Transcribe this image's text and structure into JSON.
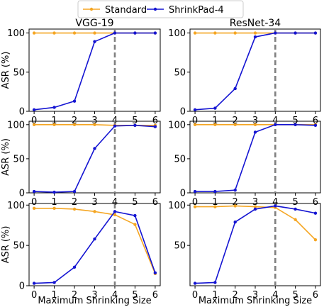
{
  "legend": {
    "placement": "top-center",
    "items": [
      {
        "label": "Standard",
        "color": "#f5a623"
      },
      {
        "label": "ShrinkPad-4",
        "color": "#1414d2"
      }
    ]
  },
  "chart_data": [
    {
      "type": "line",
      "title": "VGG-19",
      "xlabel": "",
      "ylabel": "ASR (%)",
      "x": [
        0,
        1,
        2,
        3,
        4,
        5,
        6
      ],
      "xlim": [
        -0.25,
        6.25
      ],
      "ylim": [
        0,
        105
      ],
      "yticks": [
        0,
        50,
        100
      ],
      "vline": 4,
      "grid": false,
      "series": [
        {
          "name": "Standard",
          "color": "#f5a623",
          "values": [
            100,
            100,
            100,
            100,
            100,
            100,
            100
          ]
        },
        {
          "name": "ShrinkPad-4",
          "color": "#1414d2",
          "values": [
            2,
            5,
            13,
            89,
            100,
            100,
            100
          ]
        }
      ]
    },
    {
      "type": "line",
      "title": "ResNet-34",
      "xlabel": "",
      "ylabel": "",
      "x": [
        0,
        1,
        2,
        3,
        4,
        5,
        6
      ],
      "xlim": [
        -0.25,
        6.25
      ],
      "ylim": [
        0,
        105
      ],
      "yticks": [
        0,
        50,
        100
      ],
      "vline": 4,
      "grid": false,
      "series": [
        {
          "name": "Standard",
          "color": "#f5a623",
          "values": [
            100,
            100,
            100,
            100,
            100,
            100,
            100
          ]
        },
        {
          "name": "ShrinkPad-4",
          "color": "#1414d2",
          "values": [
            2,
            4,
            29,
            95,
            100,
            100,
            100
          ]
        }
      ]
    },
    {
      "type": "line",
      "title": "",
      "xlabel": "",
      "ylabel": "ASR (%)",
      "x": [
        0,
        1,
        2,
        3,
        4,
        5,
        6
      ],
      "xlim": [
        -0.25,
        6.25
      ],
      "ylim": [
        0,
        105
      ],
      "yticks": [
        0,
        50,
        100
      ],
      "vline": 4,
      "grid": false,
      "series": [
        {
          "name": "Standard",
          "color": "#f5a623",
          "values": [
            100,
            100,
            100,
            100,
            99,
            99,
            99
          ]
        },
        {
          "name": "ShrinkPad-4",
          "color": "#1414d2",
          "values": [
            2,
            1,
            2,
            65,
            98,
            99,
            97
          ]
        }
      ]
    },
    {
      "type": "line",
      "title": "",
      "xlabel": "",
      "ylabel": "",
      "x": [
        0,
        1,
        2,
        3,
        4,
        5,
        6
      ],
      "xlim": [
        -0.25,
        6.25
      ],
      "ylim": [
        0,
        105
      ],
      "yticks": [
        0,
        50,
        100
      ],
      "vline": 4,
      "grid": false,
      "series": [
        {
          "name": "Standard",
          "color": "#f5a623",
          "values": [
            100,
            100,
            100,
            100,
            100,
            100,
            100
          ]
        },
        {
          "name": "ShrinkPad-4",
          "color": "#1414d2",
          "values": [
            2,
            2,
            4,
            89,
            100,
            100,
            99
          ]
        }
      ]
    },
    {
      "type": "line",
      "title": "",
      "xlabel": "Maximum Shrinking Size",
      "ylabel": "ASR (%)",
      "x": [
        0,
        1,
        2,
        3,
        4,
        5,
        6
      ],
      "xlim": [
        -0.25,
        6.25
      ],
      "ylim": [
        0,
        102
      ],
      "yticks": [
        0,
        50,
        100
      ],
      "vline": 4,
      "grid": false,
      "series": [
        {
          "name": "Standard",
          "color": "#f5a623",
          "values": [
            96,
            96,
            95,
            92,
            88,
            76,
            15
          ]
        },
        {
          "name": "ShrinkPad-4",
          "color": "#1414d2",
          "values": [
            3,
            4,
            23,
            58,
            92,
            87,
            16
          ]
        }
      ]
    },
    {
      "type": "line",
      "title": "",
      "xlabel": "Maximum Shrinking Size",
      "ylabel": "",
      "x": [
        0,
        1,
        2,
        3,
        4,
        5,
        6
      ],
      "xlim": [
        -0.25,
        6.25
      ],
      "ylim": [
        0,
        102
      ],
      "yticks": [
        50,
        100
      ],
      "vline": 4,
      "grid": false,
      "series": [
        {
          "name": "Standard",
          "color": "#f5a623",
          "values": [
            98,
            98,
            99,
            98,
            97,
            82,
            57
          ]
        },
        {
          "name": "ShrinkPad-4",
          "color": "#1414d2",
          "values": [
            3,
            4,
            79,
            95,
            99,
            95,
            90
          ]
        }
      ]
    }
  ]
}
